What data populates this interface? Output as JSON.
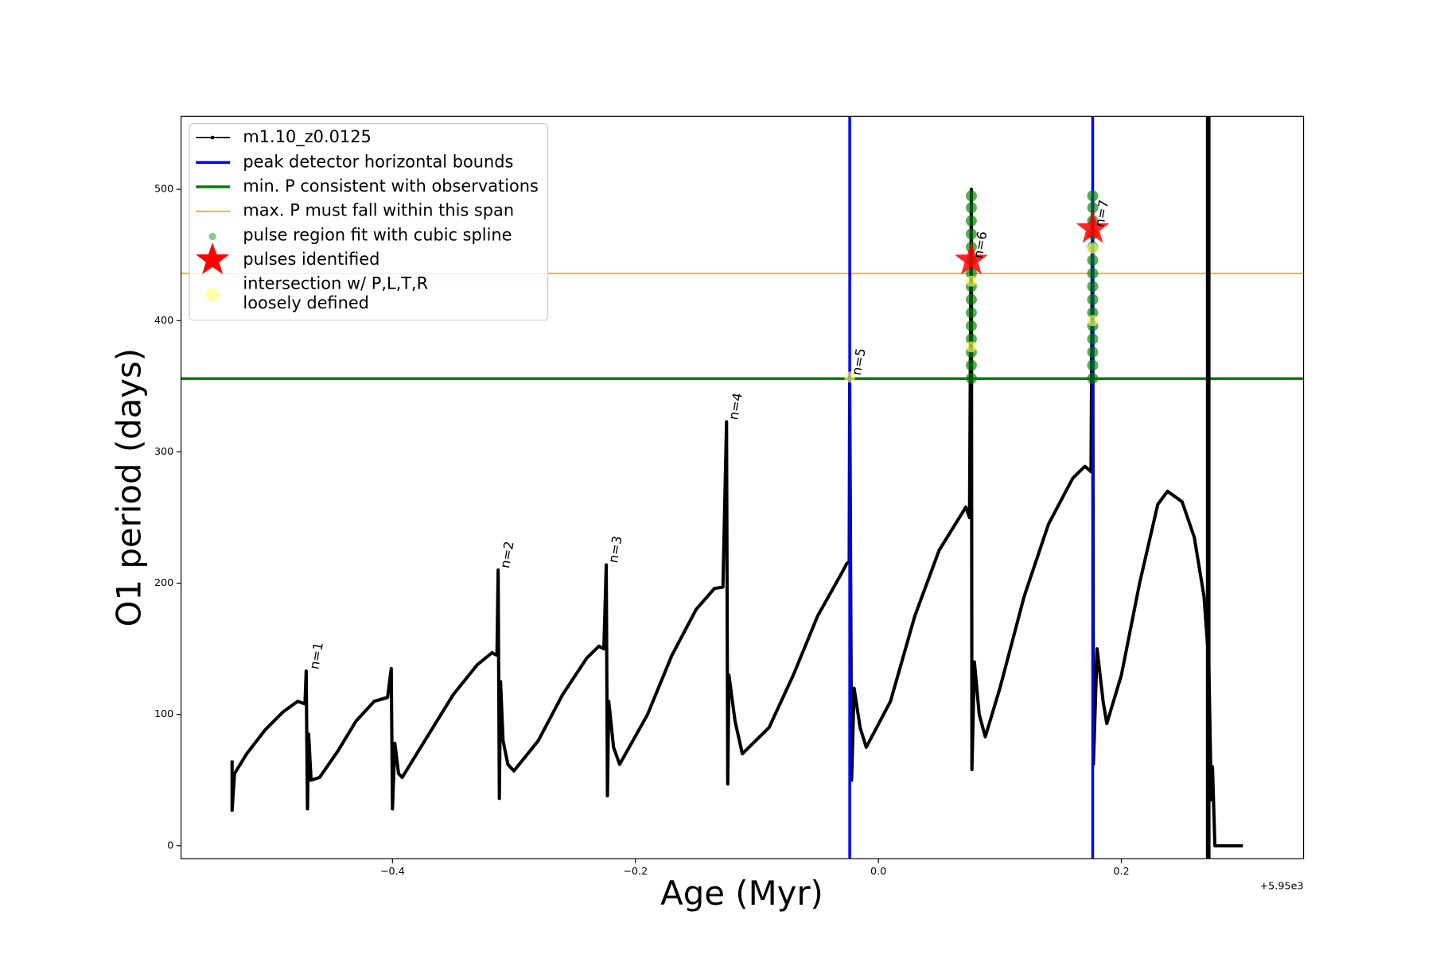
{
  "chart_data": {
    "type": "line",
    "x_label": "Age (Myr)",
    "y_label": "O1 period (days)",
    "x_offset_label": "+5.95e3",
    "xlim": [
      -0.574,
      0.35
    ],
    "ylim": [
      -9.8,
      555.6
    ],
    "xticks": [
      {
        "value": -0.4,
        "label": "−0.4"
      },
      {
        "value": -0.2,
        "label": "−0.2"
      },
      {
        "value": 0.0,
        "label": "0.0"
      },
      0.2
    ],
    "yticks": [
      0,
      100,
      200,
      300,
      400,
      500
    ],
    "grid": false,
    "legend": "upper left",
    "end_marker_x": 0.2715,
    "end_marker_color": "#000000",
    "series": [
      {
        "name": "m1.10_z0.0125",
        "kind": "line",
        "color": "#000000",
        "x": [
          -0.532,
          -0.532,
          -0.53,
          -0.52,
          -0.505,
          -0.49,
          -0.478,
          -0.472,
          -0.471,
          -0.47,
          -0.469,
          -0.467,
          -0.46,
          -0.445,
          -0.43,
          -0.415,
          -0.404,
          -0.401,
          -0.4,
          -0.398,
          -0.395,
          -0.392,
          -0.37,
          -0.35,
          -0.33,
          -0.318,
          -0.314,
          -0.313,
          -0.312,
          -0.311,
          -0.309,
          -0.305,
          -0.3,
          -0.28,
          -0.26,
          -0.24,
          -0.23,
          -0.226,
          -0.224,
          -0.223,
          -0.222,
          -0.218,
          -0.213,
          -0.19,
          -0.17,
          -0.15,
          -0.135,
          -0.128,
          -0.125,
          -0.124,
          -0.123,
          -0.118,
          -0.112,
          -0.09,
          -0.07,
          -0.05,
          -0.03,
          -0.026,
          -0.024,
          -0.0236,
          -0.022,
          -0.02,
          -0.015,
          -0.01,
          0.01,
          0.03,
          0.05,
          0.07,
          0.072,
          0.075,
          0.0765,
          0.077,
          0.079,
          0.083,
          0.088,
          0.1,
          0.12,
          0.14,
          0.16,
          0.17,
          0.175,
          0.1764,
          0.177,
          0.18,
          0.185,
          0.188,
          0.2,
          0.215,
          0.23,
          0.238,
          0.25,
          0.26,
          0.268,
          0.272,
          0.274,
          0.275,
          0.277,
          0.3
        ],
        "values": [
          65,
          27,
          55,
          70,
          88,
          102,
          110,
          108,
          133,
          28,
          85,
          50,
          52,
          72,
          95,
          110,
          113,
          135,
          28,
          78,
          55,
          52,
          85,
          115,
          138,
          147,
          145,
          210,
          36,
          125,
          80,
          62,
          57,
          80,
          115,
          143,
          152,
          150,
          214,
          38,
          110,
          75,
          62,
          100,
          145,
          180,
          196,
          197,
          323,
          47,
          130,
          95,
          70,
          90,
          130,
          175,
          208,
          215,
          216,
          357,
          50,
          120,
          90,
          75,
          110,
          175,
          225,
          255,
          258,
          250,
          500,
          58,
          140,
          100,
          83,
          120,
          190,
          245,
          280,
          289,
          285,
          495,
          62,
          150,
          110,
          93,
          130,
          200,
          260,
          270,
          262,
          235,
          190,
          140,
          35,
          60,
          0,
          0
        ]
      },
      {
        "name": "peak detector horizontal bounds",
        "kind": "vline",
        "color": "#0000ff",
        "x": [
          -0.0236,
          0.1764
        ]
      },
      {
        "name": "min. P consistent with observations",
        "kind": "hline",
        "color": "#008000",
        "values": [
          355.8
        ]
      },
      {
        "name": "max. P must fall within this span",
        "kind": "hline",
        "color": "#ffa500",
        "values": [
          436
        ]
      },
      {
        "name": "pulse region fit with cubic spline",
        "kind": "scatter",
        "color": "#008000",
        "x": [
          0.0765,
          0.0765,
          0.0765,
          0.0765,
          0.0765,
          0.0765,
          0.0765,
          0.0765,
          0.0765,
          0.0765,
          0.0765,
          0.0765,
          0.0765,
          0.0765,
          0.0765,
          0.1764,
          0.1764,
          0.1764,
          0.1764,
          0.1764,
          0.1764,
          0.1764,
          0.1764,
          0.1764,
          0.1764,
          0.1764,
          0.1764,
          0.1764,
          0.1764,
          0.1764
        ],
        "values": [
          356,
          366,
          376,
          386,
          396,
          406,
          416,
          426,
          436,
          446,
          456,
          466,
          476,
          486,
          495,
          356,
          366,
          376,
          386,
          396,
          406,
          416,
          426,
          436,
          446,
          456,
          466,
          476,
          486,
          495
        ]
      },
      {
        "name": "pulses identified",
        "kind": "star",
        "color": "#ff0000",
        "x": [
          0.0765,
          0.1764
        ],
        "values": [
          446,
          470
        ]
      },
      {
        "name": "intersection w/ P,L,T,R\nloosely defined",
        "kind": "scatter",
        "color": "#ffff66",
        "x": [
          -0.0236,
          0.0765,
          0.0765,
          0.1764,
          0.1764
        ],
        "values": [
          357,
          380,
          430,
          400,
          455
        ]
      }
    ],
    "annotations": [
      {
        "text": "n=1",
        "x": -0.47,
        "y": 133
      },
      {
        "text": "n=2",
        "x": -0.313,
        "y": 210
      },
      {
        "text": "n=3",
        "x": -0.224,
        "y": 214
      },
      {
        "text": "n=4",
        "x": -0.125,
        "y": 323
      },
      {
        "text": "n=5",
        "x": -0.0236,
        "y": 357
      },
      {
        "text": "n=6",
        "x": 0.0765,
        "y": 446
      },
      {
        "text": "n=7",
        "x": 0.1764,
        "y": 470
      }
    ]
  }
}
